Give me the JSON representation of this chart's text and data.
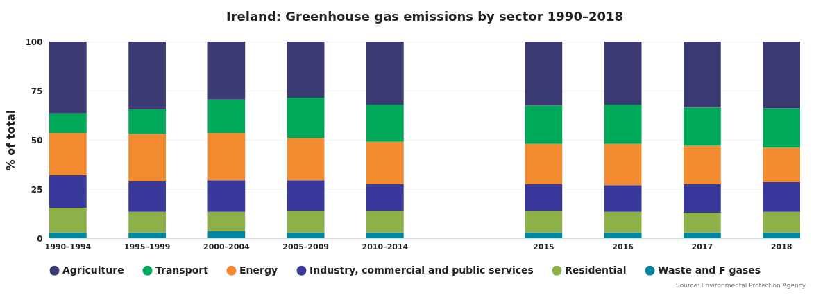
{
  "chart_data": {
    "type": "bar",
    "title": "Ireland: Greenhouse gas emissions by sector 1990–2018",
    "ylabel": "% of total",
    "stacked": true,
    "categories": [
      "1990–1994",
      "1995–1999",
      "2000–2004",
      "2005–2009",
      "2010–2014",
      null,
      "2015",
      "2016",
      "2017",
      "2018"
    ],
    "series": [
      {
        "name": "Waste and F gases",
        "color": "#00869c",
        "values": [
          3,
          3,
          3.5,
          3,
          3,
          null,
          3,
          3,
          3,
          3
        ]
      },
      {
        "name": "Residential",
        "color": "#8db048",
        "values": [
          12.5,
          10.5,
          10,
          11,
          11,
          null,
          11,
          10.5,
          10,
          10.5
        ]
      },
      {
        "name": "Industry, commercial and public services",
        "color": "#38399a",
        "values": [
          16.5,
          15.5,
          16,
          15.5,
          13.5,
          null,
          13.5,
          13.5,
          14.5,
          15
        ]
      },
      {
        "name": "Energy",
        "color": "#f28a30",
        "values": [
          21.5,
          24,
          24,
          21.5,
          21.5,
          null,
          20.5,
          21,
          19.5,
          17.5
        ]
      },
      {
        "name": "Transport",
        "color": "#00a85a",
        "values": [
          10,
          12.5,
          17,
          20.5,
          19,
          null,
          19.5,
          20,
          19.5,
          20
        ]
      },
      {
        "name": "Agriculture",
        "color": "#3b3a73",
        "values": [
          36.5,
          34.5,
          29.5,
          28.5,
          32,
          null,
          32.5,
          32,
          33.5,
          34
        ]
      }
    ],
    "ylim": [
      0,
      100
    ],
    "yticks": [
      0,
      25,
      50,
      75,
      100
    ],
    "grid": "y",
    "legend": "bottom",
    "annotations": [
      "Source: Environmental Protection Agency"
    ]
  }
}
